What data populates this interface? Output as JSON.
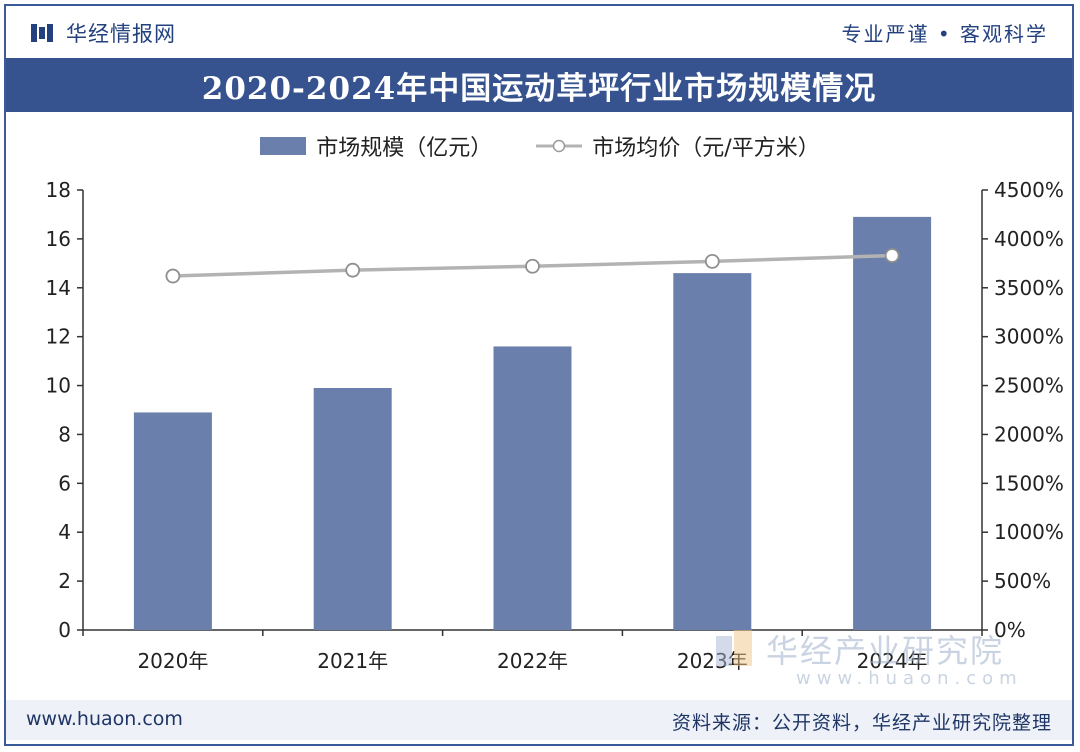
{
  "header": {
    "brand_name": "华经情报网",
    "brand_icon": "book-icon",
    "slogan": "专业严谨 • 客观科学"
  },
  "footer": {
    "site": "www.huaon.com",
    "source": "资料来源：公开资料，华经产业研究院整理"
  },
  "watermark": {
    "text": "华经产业研究院",
    "url": "www.huaon.com"
  },
  "colors": {
    "bar": "#6a7fab",
    "line": "#b3b3b3",
    "title_bg": "#36538f"
  },
  "chart_data": {
    "type": "bar",
    "title": "2020-2024年中国运动草坪行业市场规模情况",
    "categories": [
      "2020年",
      "2021年",
      "2022年",
      "2023年",
      "2024年"
    ],
    "series": [
      {
        "name": "市场规模（亿元）",
        "type": "bar",
        "axis": "left",
        "values": [
          8.9,
          9.9,
          11.6,
          14.6,
          16.9
        ]
      },
      {
        "name": "市场均价（元/平方米）",
        "type": "line",
        "axis": "right",
        "values": [
          3620,
          3680,
          3720,
          3770,
          3830
        ]
      }
    ],
    "y_left": {
      "min": 0,
      "max": 18,
      "ticks": [
        "0",
        "2",
        "4",
        "6",
        "8",
        "10",
        "12",
        "14",
        "16",
        "18"
      ]
    },
    "y_right": {
      "min": 0,
      "max": 4500,
      "ticks": [
        "0%",
        "500%",
        "1000%",
        "1500%",
        "2000%",
        "2500%",
        "3000%",
        "3500%",
        "4000%",
        "4500%"
      ]
    },
    "legend_position": "top",
    "grid": false
  }
}
